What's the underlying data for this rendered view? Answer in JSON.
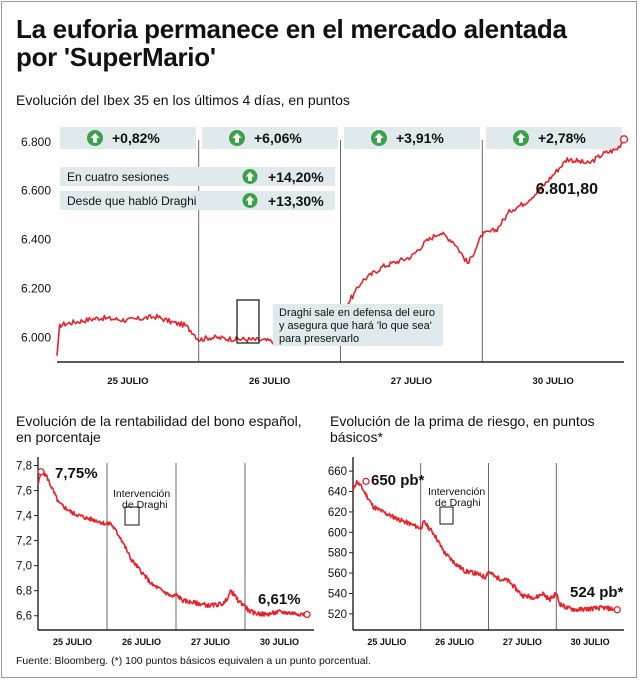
{
  "title": "La euforia permanece en el mercado alentada por 'SuperMario'",
  "source": "Fuente: Bloomberg. (*) 100 puntos básicos equivalen a un punto porcentual.",
  "colors": {
    "line": "#e8222b",
    "badge_bg": "#e0e9eb",
    "arrow": "#3aa14a",
    "axis": "#222222",
    "grid": "#444444"
  },
  "chart_data": [
    {
      "type": "line",
      "title": "Evolución del Ibex 35 en los últimos 4 días, en puntos",
      "categories": [
        "25 JULIO",
        "26 JULIO",
        "27 JULIO",
        "30 JULIO"
      ],
      "ylim": [
        5940,
        6840
      ],
      "yticks": [
        "6.000",
        "6.200",
        "6.400",
        "6.600",
        "6.800"
      ],
      "ytick_values": [
        6000,
        6200,
        6400,
        6600,
        6800
      ],
      "series": [
        {
          "x": [
            0,
            0.02,
            0.1,
            0.3,
            0.5,
            0.7,
            0.82,
            0.9,
            0.96,
            1.0,
            1.08,
            1.2,
            1.4,
            1.6,
            1.8,
            1.92,
            2.0,
            2.05,
            2.1,
            2.15,
            2.2,
            2.3,
            2.5,
            2.6,
            2.7,
            2.8,
            2.9,
            3.0,
            3.1,
            3.2,
            3.3,
            3.4,
            3.6,
            3.75,
            3.85,
            3.95,
            4.0
          ],
          "values": [
            5925,
            6050,
            6060,
            6080,
            6070,
            6085,
            6060,
            6050,
            6020,
            5990,
            6000,
            5995,
            5990,
            5980,
            5975,
            5990,
            6070,
            6140,
            6180,
            6230,
            6250,
            6290,
            6330,
            6390,
            6430,
            6390,
            6300,
            6420,
            6440,
            6520,
            6550,
            6600,
            6730,
            6710,
            6750,
            6770,
            6810
          ]
        }
      ],
      "label_monthly": {
        "badge_values": [
          "+0,82%",
          "+6,06%",
          "+3,91%",
          "+2,78%"
        ]
      },
      "info_rows": [
        {
          "label": "En cuatro sesiones",
          "value": "+14,20%"
        },
        {
          "label": "Desde que habló Draghi",
          "value": "+13,30%"
        }
      ],
      "last_value_label": "6.801,80",
      "annotation": "Draghi sale en defensa del euro y asegura que hará 'lo que sea' para preservarlo"
    },
    {
      "type": "line",
      "title": "Evolución de la rentabilidad del bono español, en porcentaje",
      "categories": [
        "25 JULIO",
        "26 JULIO",
        "27 JULIO",
        "30 JULIO"
      ],
      "ylim": [
        6.55,
        7.82
      ],
      "yticks": [
        "6,6",
        "6,8",
        "7,0",
        "7,2",
        "7,4",
        "7,6",
        "7,8"
      ],
      "ytick_values": [
        6.6,
        6.8,
        7.0,
        7.2,
        7.4,
        7.6,
        7.8
      ],
      "series": [
        {
          "x": [
            0,
            0.05,
            0.12,
            0.3,
            0.5,
            0.7,
            0.85,
            1.0,
            1.05,
            1.1,
            1.2,
            1.35,
            1.5,
            1.65,
            1.8,
            1.95,
            2.0,
            2.1,
            2.3,
            2.5,
            2.7,
            2.8,
            2.9,
            3.0,
            3.05,
            3.15,
            3.3,
            3.5,
            3.7,
            3.9
          ],
          "values": [
            7.65,
            7.75,
            7.72,
            7.5,
            7.42,
            7.38,
            7.36,
            7.33,
            7.34,
            7.3,
            7.22,
            7.05,
            6.95,
            6.85,
            6.8,
            6.75,
            6.77,
            6.72,
            6.7,
            6.68,
            6.7,
            6.8,
            6.72,
            6.68,
            6.64,
            6.62,
            6.61,
            6.63,
            6.62,
            6.61
          ]
        }
      ],
      "start_value_label": "7,75%",
      "last_value_label": "6,61%",
      "annotation": "Intervención de Draghi"
    },
    {
      "type": "line",
      "title": "Evolución de la prima de riesgo, en puntos básicos*",
      "categories": [
        "25 JULIO",
        "26 JULIO",
        "27 JULIO",
        "30 JULIO"
      ],
      "ylim": [
        512,
        668
      ],
      "yticks": [
        "520",
        "540",
        "560",
        "580",
        "600",
        "620",
        "640",
        "660"
      ],
      "ytick_values": [
        520,
        540,
        560,
        580,
        600,
        620,
        640,
        660
      ],
      "series": [
        {
          "x": [
            0,
            0.05,
            0.12,
            0.3,
            0.5,
            0.7,
            0.85,
            1.0,
            1.05,
            1.1,
            1.2,
            1.35,
            1.5,
            1.65,
            1.8,
            1.95,
            2.0,
            2.1,
            2.3,
            2.5,
            2.7,
            2.8,
            2.9,
            3.0,
            3.05,
            3.15,
            3.3,
            3.5,
            3.7,
            3.9
          ],
          "values": [
            640,
            650,
            645,
            625,
            618,
            612,
            608,
            604,
            610,
            606,
            598,
            580,
            570,
            562,
            560,
            556,
            562,
            556,
            552,
            538,
            536,
            540,
            534,
            540,
            530,
            526,
            524,
            525,
            526,
            524
          ]
        }
      ],
      "start_value_label": "650 pb*",
      "last_value_label": "524 pb*",
      "annotation": "Intervención de Draghi"
    }
  ]
}
